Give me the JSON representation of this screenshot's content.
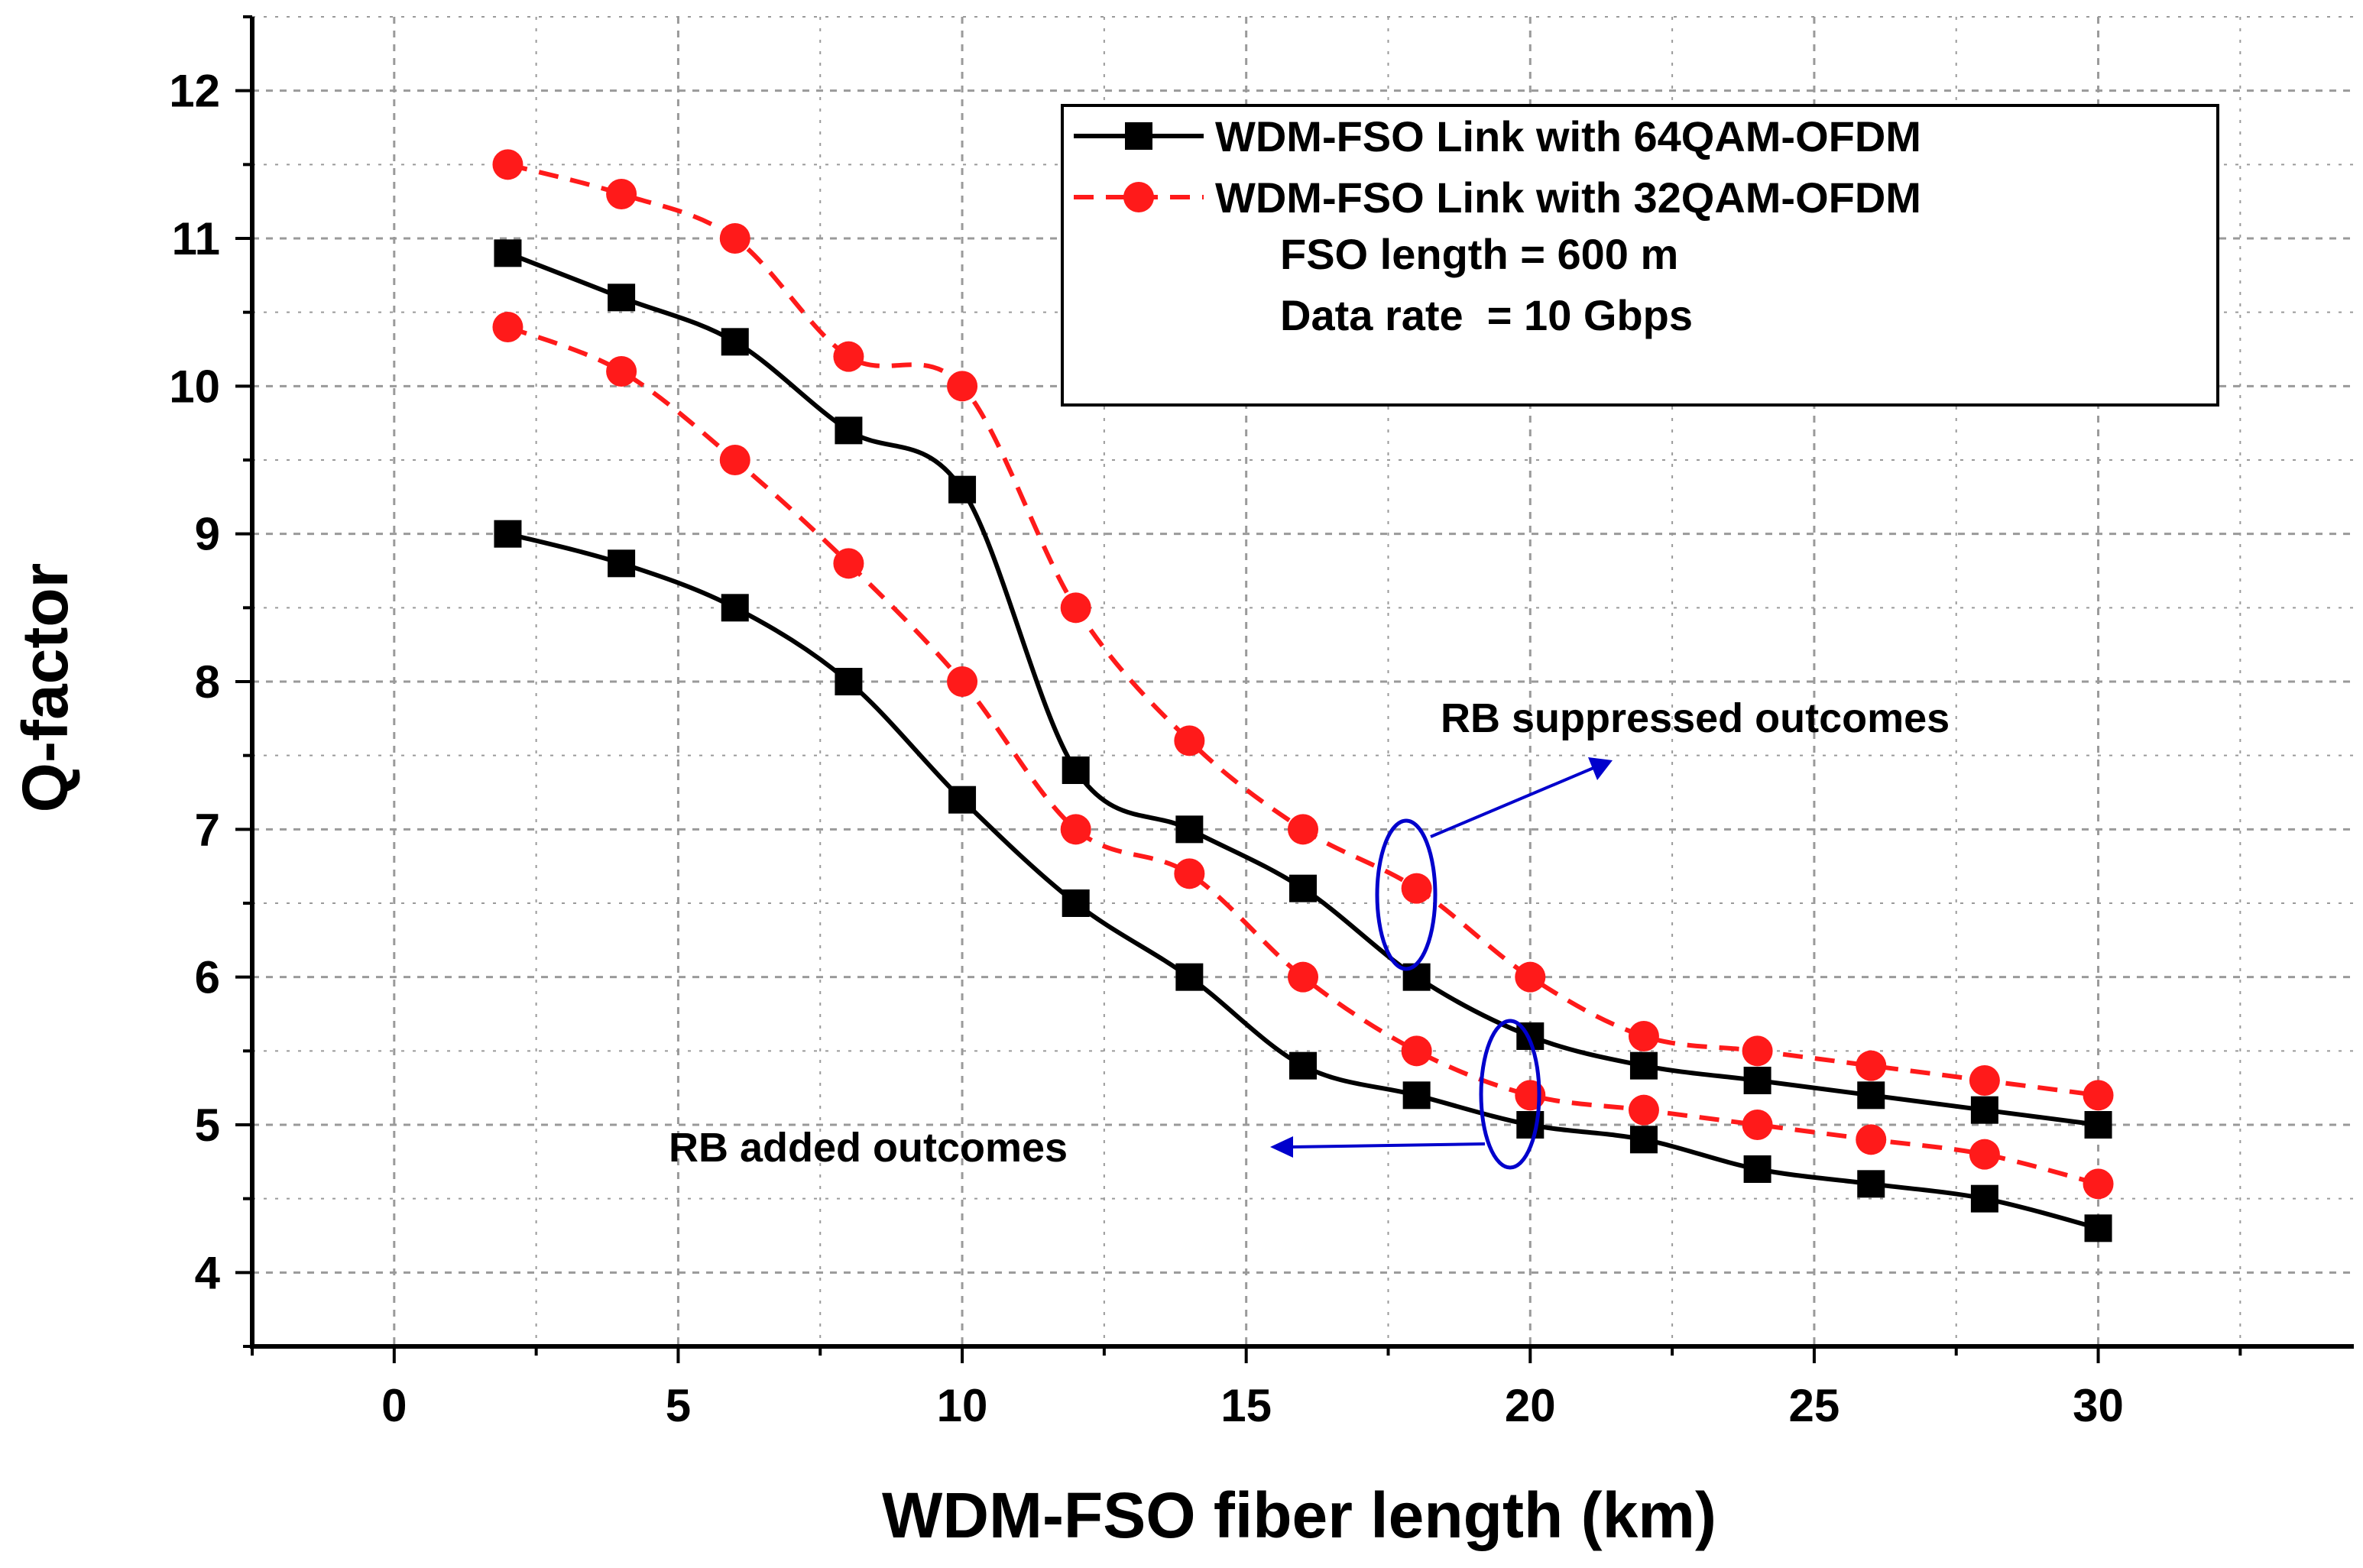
{
  "chart_data": {
    "type": "line",
    "title": "",
    "xlabel": "WDM-FSO fiber length (km)",
    "ylabel": "Q-factor",
    "xlim": [
      -2.5,
      34.5
    ],
    "ylim": [
      3.5,
      12.5
    ],
    "xticks": [
      0,
      5,
      10,
      15,
      20,
      25,
      30
    ],
    "yticks": [
      4,
      5,
      6,
      7,
      8,
      9,
      10,
      11,
      12
    ],
    "grid": true,
    "x": [
      2,
      4,
      6,
      8,
      10,
      12,
      14,
      16,
      18,
      20,
      22,
      24,
      26,
      28,
      30
    ],
    "series": [
      {
        "name": "WDM-FSO Link with 64QAM-OFDM",
        "group": "RB suppressed outcomes",
        "values": [
          10.9,
          10.6,
          10.3,
          9.7,
          9.3,
          7.4,
          7.0,
          6.6,
          6.0,
          5.6,
          5.4,
          5.3,
          5.2,
          5.1,
          5.0
        ]
      },
      {
        "name": "WDM-FSO Link with 64QAM-OFDM",
        "group": "RB added outcomes",
        "values": [
          9.0,
          8.8,
          8.5,
          8.0,
          7.2,
          6.5,
          6.0,
          5.4,
          5.2,
          5.0,
          4.9,
          4.7,
          4.6,
          4.5,
          4.3
        ]
      },
      {
        "name": "WDM-FSO Link with 32QAM-OFDM",
        "group": "RB suppressed outcomes",
        "values": [
          11.5,
          11.3,
          11.0,
          10.2,
          10.0,
          8.5,
          7.6,
          7.0,
          6.6,
          6.0,
          5.6,
          5.5,
          5.4,
          5.3,
          5.2
        ]
      },
      {
        "name": "WDM-FSO Link with 32QAM-OFDM",
        "group": "RB added outcomes",
        "values": [
          10.4,
          10.1,
          9.5,
          8.8,
          8.0,
          7.0,
          6.7,
          6.0,
          5.5,
          5.2,
          5.1,
          5.0,
          4.9,
          4.8,
          4.6
        ]
      }
    ],
    "legend": {
      "position": "top-right",
      "entries": [
        "WDM-FSO Link with 64QAM-OFDM",
        "WDM-FSO Link with 32QAM-OFDM"
      ],
      "notes": [
        "FSO length = 600 m",
        "Data rate  = 10 Gbps"
      ]
    },
    "annotations": {
      "suppressed": "RB suppressed outcomes",
      "added": "RB added outcomes"
    },
    "colors": {
      "series64": "#000000",
      "series32": "#ff1a1a",
      "annotation": "#0000cc",
      "grid": "#9a9a9a"
    }
  }
}
